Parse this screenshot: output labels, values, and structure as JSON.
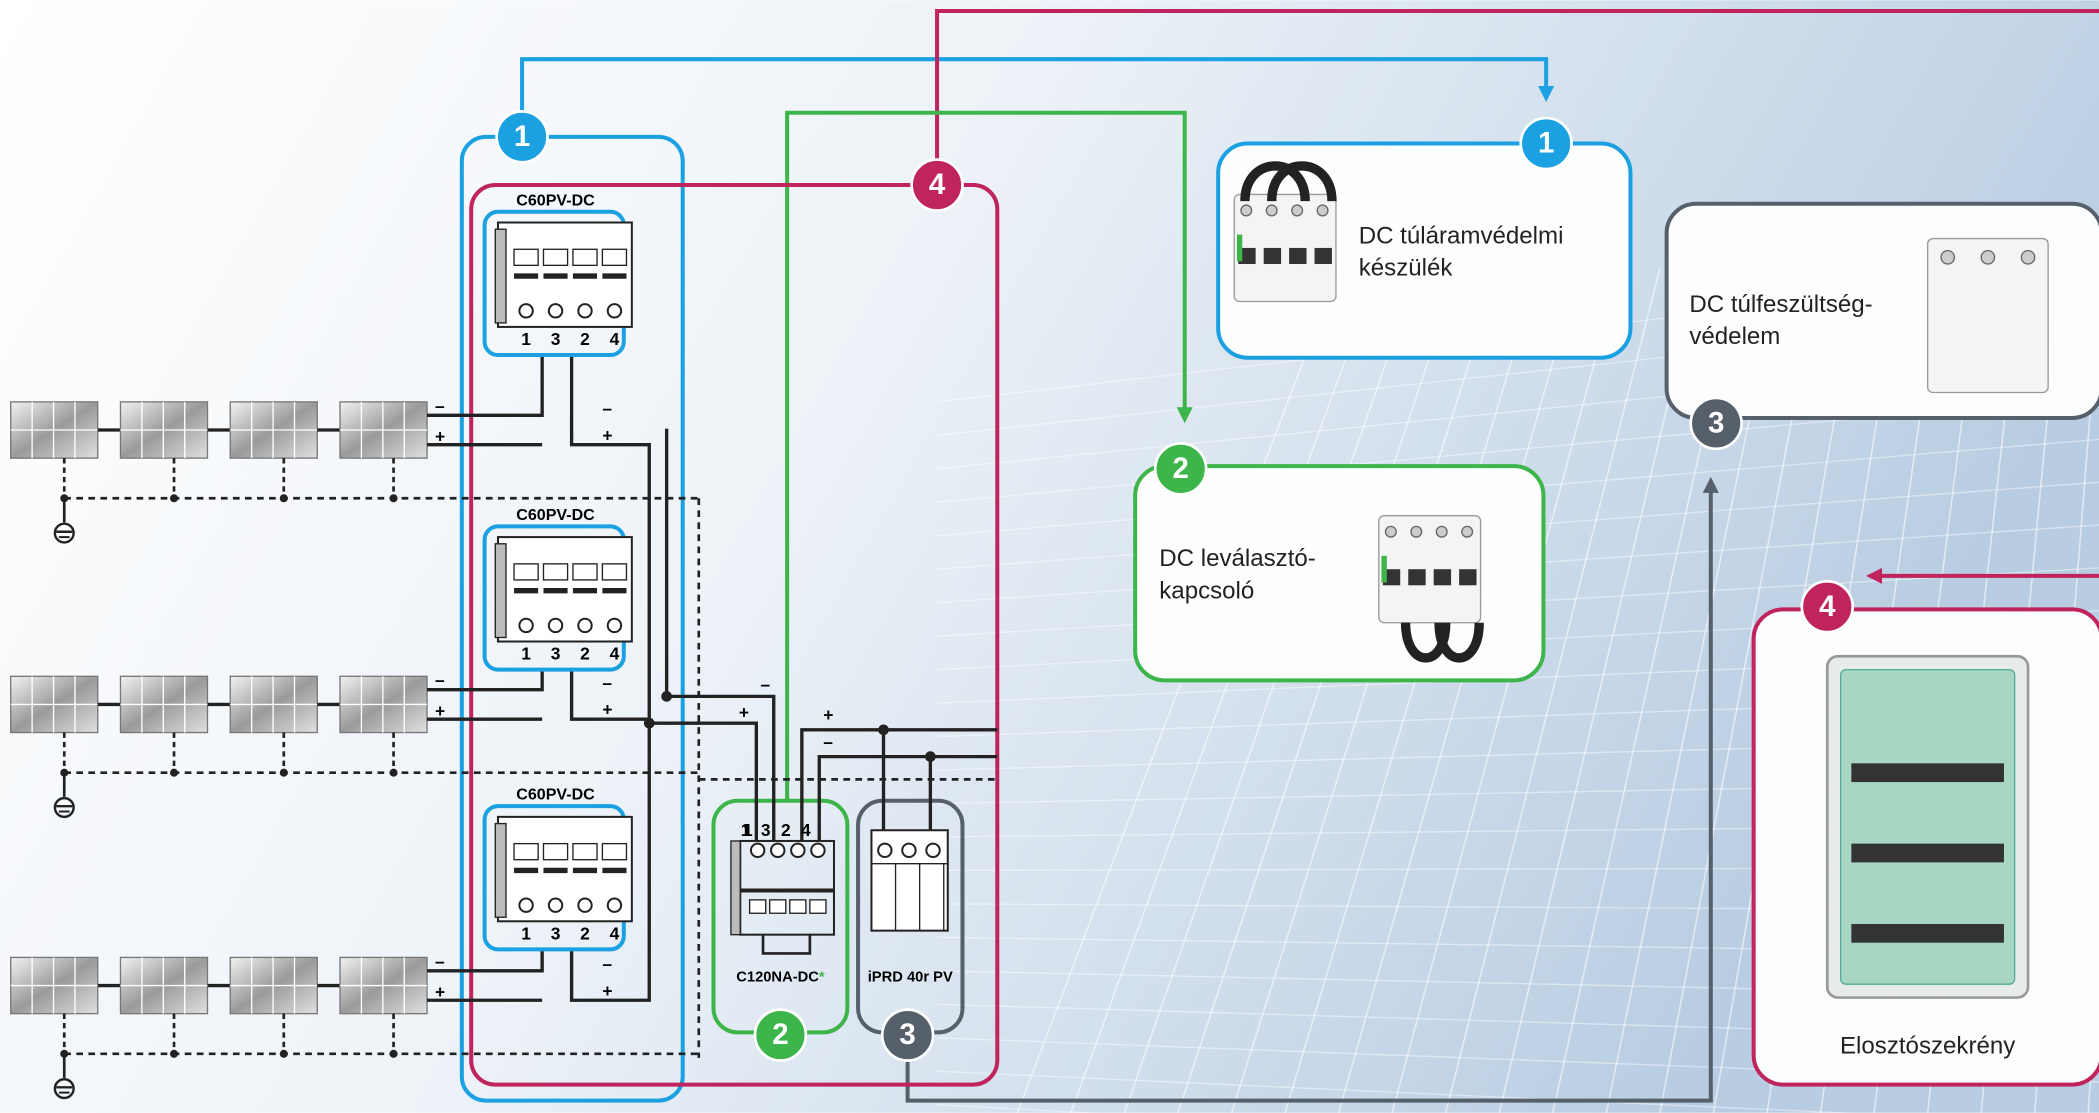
{
  "diagram": {
    "badges": [
      "1",
      "2",
      "3",
      "4"
    ],
    "polarity": {
      "minus": "–",
      "plus": "+"
    },
    "breaker": {
      "label": "C60PV-DC",
      "terminals": [
        "1",
        "3",
        "2",
        "4"
      ]
    },
    "switch": {
      "label": "C120NA-DC",
      "asterisk": "*"
    },
    "spd": {
      "label": "iPRD 40r PV"
    },
    "products": [
      {
        "lines": [
          "DC túláramvédelmi",
          "készülék"
        ]
      },
      {
        "lines": [
          "DC leválasztó-",
          "kapcsoló"
        ]
      },
      {
        "lines": [
          "DC túlfeszültség-",
          "védelem"
        ]
      },
      {
        "lines": [
          "Elosztószekrény"
        ]
      }
    ]
  }
}
